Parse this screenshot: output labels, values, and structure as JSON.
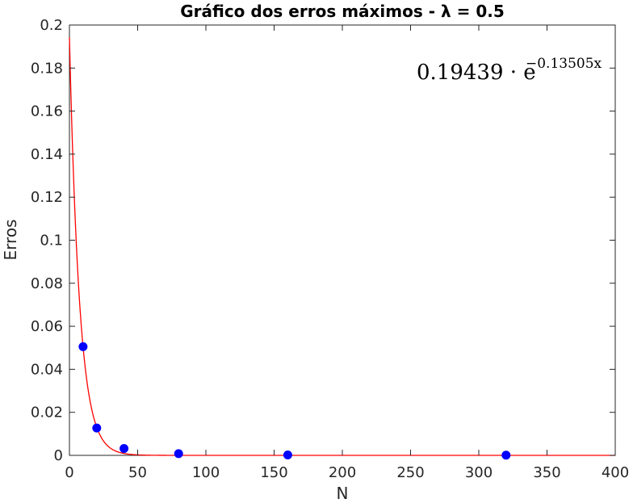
{
  "chart_data": {
    "type": "scatter",
    "title": "Gráfico dos erros máximos - λ = 0.5",
    "xlabel": "N",
    "ylabel": "Erros",
    "xlim": [
      0,
      400
    ],
    "ylim": [
      0,
      0.2
    ],
    "xticks": [
      0,
      50,
      100,
      150,
      200,
      250,
      300,
      350,
      400
    ],
    "yticks": [
      0,
      0.02,
      0.04,
      0.06,
      0.08,
      0.1,
      0.12,
      0.14,
      0.16,
      0.18,
      0.2
    ],
    "xtick_labels": [
      "0",
      "50",
      "100",
      "150",
      "200",
      "250",
      "300",
      "350",
      "400"
    ],
    "ytick_labels": [
      "0",
      "0.02",
      "0.04",
      "0.06",
      "0.08",
      "0.1",
      "0.12",
      "0.14",
      "0.16",
      "0.18",
      "0.2"
    ],
    "grid": false,
    "points": {
      "color": "#0000ff",
      "x": [
        10,
        20,
        40,
        80,
        160,
        320
      ],
      "y": [
        0.0505,
        0.0127,
        0.0032,
        0.0008,
        0.0002,
        0.0001
      ]
    },
    "fit": {
      "color": "#ff0000",
      "a": 0.19439,
      "b": -0.13505
    },
    "annotation": {
      "base": "0.19439 · e",
      "exponent": "−0.13505x"
    }
  }
}
